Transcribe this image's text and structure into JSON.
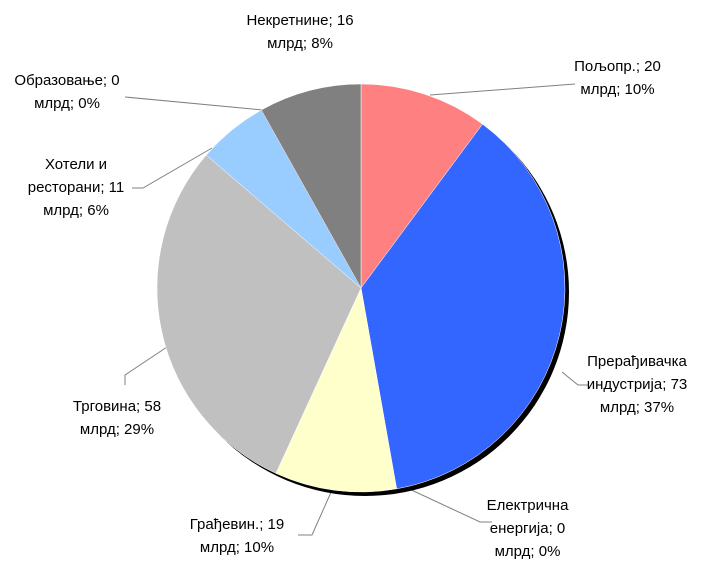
{
  "chart_data": {
    "type": "pie",
    "labels": [
      "Пољопр.; 20 млрд; 10%",
      "Прерађивачка индустрија; 73 млрд; 37%",
      "Електрична енергија; 0 млрд; 0%",
      "Грађевин.; 19 млрд; 10%",
      "Трговина; 58 млрд; 29%",
      "Хотели и ресторани; 11 млрд; 6%",
      "Образовање; 0 млрд; 0%",
      "Некретнине; 16 млрд; 8%"
    ],
    "values": [
      20,
      73,
      0,
      19,
      58,
      11,
      0,
      16
    ],
    "colors": [
      "#ff8080",
      "#3366ff",
      "#ffcc99",
      "#ffffcc",
      "#c0c0c0",
      "#99ccff",
      "#993366",
      "#808080"
    ],
    "start_angle": 0,
    "direction": "clockwise"
  }
}
